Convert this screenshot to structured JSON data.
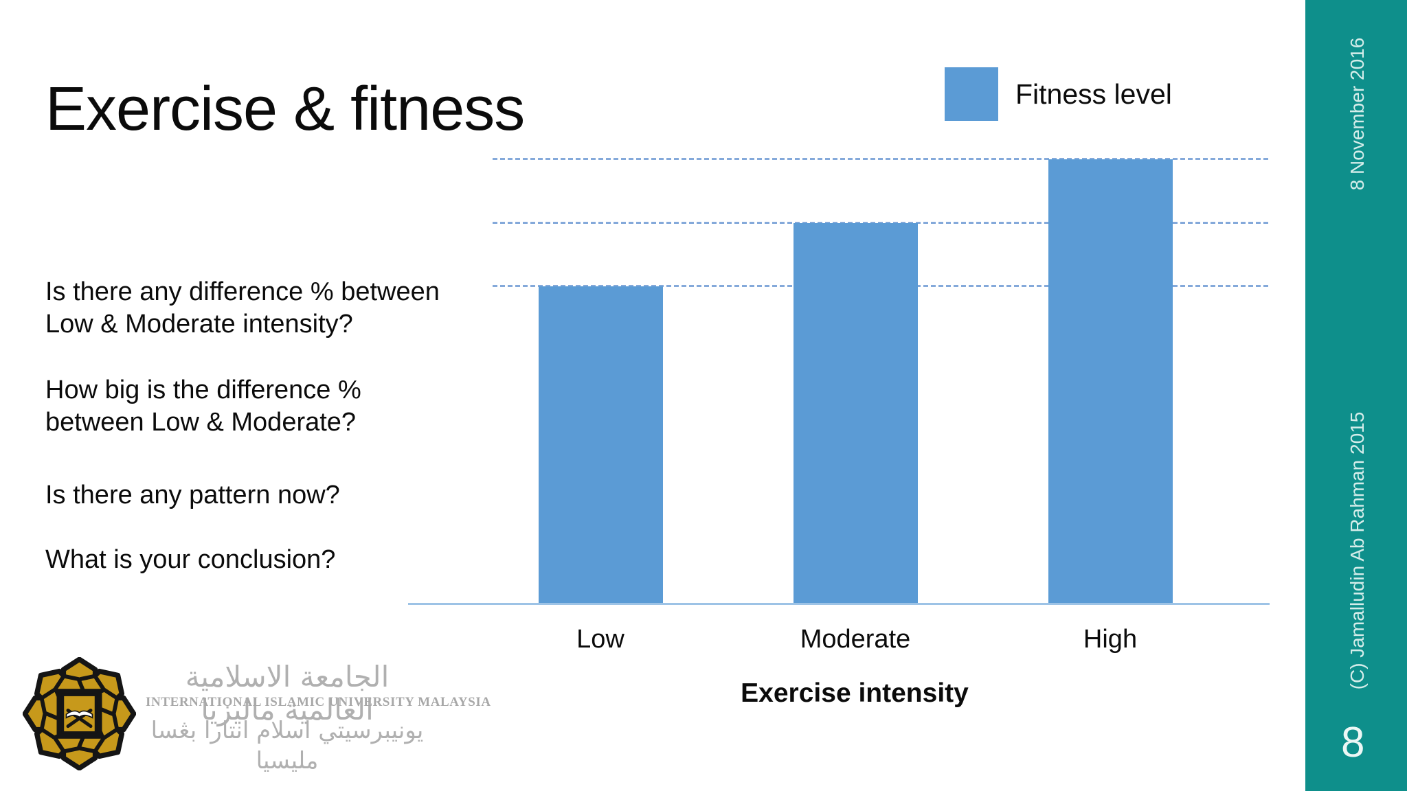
{
  "slide": {
    "title": "Exercise & fitness",
    "questions": [
      "Is there any difference % between Low & Moderate intensity?",
      "How big is the difference % between Low & Moderate?",
      "Is there any pattern now?",
      "What is your conclusion?"
    ],
    "sidebar": {
      "date": "8 November 2016",
      "copyright": "(C) Jamalludin Ab Rahman 2015",
      "page_number": "8"
    },
    "logo": {
      "arabic_top": "الجامعة الاسلامية العالمية ماليزيا",
      "caption": "INTERNATIONAL ISLAMIC UNIVERSITY MALAYSIA",
      "arabic_bottom": "يونيبرسيتي اسلام انتارا بڠسا مليسيا"
    },
    "colors": {
      "sidebar_teal": "#0e8f8b",
      "bar_blue": "#5b9bd5",
      "gridline_blue": "#84a9da",
      "axis_blue": "#9dc3e6",
      "logo_gold": "#c7991b"
    }
  },
  "chart_data": {
    "type": "bar",
    "title": "",
    "categories": [
      "Low",
      "Moderate",
      "High"
    ],
    "series": [
      {
        "name": "Fitness level",
        "values": [
          50,
          60,
          70
        ]
      }
    ],
    "xlabel": "Exercise intensity",
    "ylabel": "",
    "ylim": [
      0,
      75
    ],
    "grid": "horizontal dotted gridlines aligned with each bar top",
    "legend_position": "top-right",
    "bar_color": "#5b9bd5",
    "note": "no numeric axis labels shown; bar heights in ratio 5:6:7"
  }
}
